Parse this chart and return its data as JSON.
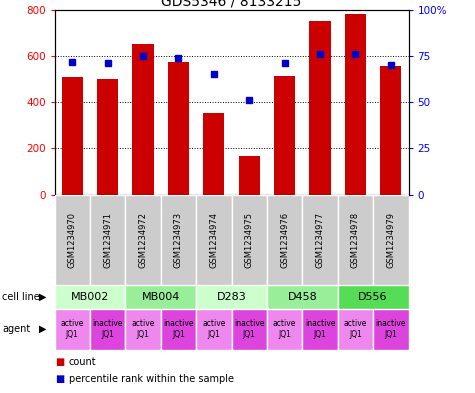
{
  "title": "GDS5346 / 8133215",
  "samples": [
    "GSM1234970",
    "GSM1234971",
    "GSM1234972",
    "GSM1234973",
    "GSM1234974",
    "GSM1234975",
    "GSM1234976",
    "GSM1234977",
    "GSM1234978",
    "GSM1234979"
  ],
  "counts": [
    510,
    500,
    650,
    575,
    355,
    165,
    515,
    750,
    780,
    555
  ],
  "percentiles": [
    72,
    71,
    75,
    74,
    65,
    51,
    71,
    76,
    76,
    70
  ],
  "cell_lines": [
    {
      "label": "MB002",
      "cols": [
        0,
        1
      ],
      "color": "#ccffcc"
    },
    {
      "label": "MB004",
      "cols": [
        2,
        3
      ],
      "color": "#99ee99"
    },
    {
      "label": "D283",
      "cols": [
        4,
        5
      ],
      "color": "#ccffcc"
    },
    {
      "label": "D458",
      "cols": [
        6,
        7
      ],
      "color": "#99ee99"
    },
    {
      "label": "D556",
      "cols": [
        8,
        9
      ],
      "color": "#55dd55"
    }
  ],
  "agents": [
    "active\nJQ1",
    "inactive\nJQ1",
    "active\nJQ1",
    "inactive\nJQ1",
    "active\nJQ1",
    "inactive\nJQ1",
    "active\nJQ1",
    "inactive\nJQ1",
    "active\nJQ1",
    "inactive\nJQ1"
  ],
  "agent_colors": [
    "#ee88ee",
    "#dd44dd",
    "#ee88ee",
    "#dd44dd",
    "#ee88ee",
    "#dd44dd",
    "#ee88ee",
    "#dd44dd",
    "#ee88ee",
    "#dd44dd"
  ],
  "bar_color": "#cc0000",
  "dot_color": "#0000cc",
  "sample_box_color": "#cccccc",
  "ylim_left": [
    0,
    800
  ],
  "ylim_right": [
    0,
    100
  ],
  "yticks_left": [
    0,
    200,
    400,
    600,
    800
  ],
  "yticks_right": [
    0,
    25,
    50,
    75,
    100
  ],
  "yticklabels_right": [
    "0",
    "25",
    "50",
    "75",
    "100%"
  ],
  "title_fontsize": 10,
  "bar_width": 0.6
}
